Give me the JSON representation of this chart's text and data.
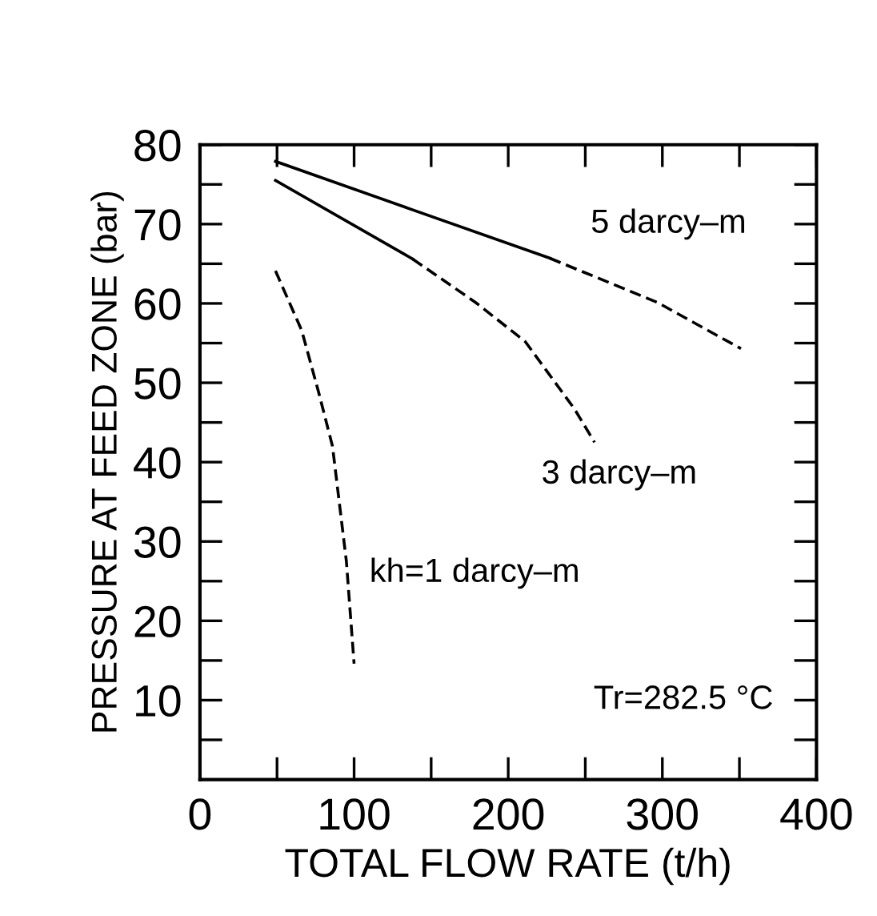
{
  "chart_data": {
    "type": "line",
    "xlabel": "TOTAL FLOW RATE (t/h)",
    "ylabel": "PRESSURE AT FEED ZONE (bar)",
    "series": [
      {
        "color": "#000000",
        "line_style": "solid",
        "x": [
          49,
          227
        ],
        "values": [
          77.9,
          65.7
        ]
      },
      {
        "color": "#000000",
        "line_style": "dashed",
        "x": [
          227,
          297,
          351
        ],
        "values": [
          65.7,
          60.1,
          54.3
        ]
      },
      {
        "color": "#000000",
        "line_style": "solid",
        "x": [
          49,
          138
        ],
        "values": [
          75.5,
          65.6
        ]
      },
      {
        "color": "#000000",
        "line_style": "dashed",
        "x": [
          138,
          179,
          211,
          243,
          256
        ],
        "values": [
          65.6,
          60.1,
          55.2,
          46.7,
          42.5
        ]
      },
      {
        "color": "#000000",
        "line_style": "dashed",
        "x": [
          49,
          66,
          77,
          86,
          95,
          100
        ],
        "values": [
          64.1,
          56.6,
          48.8,
          42,
          27.5,
          14.6
        ]
      }
    ],
    "annotations": [
      "5 darcy–m",
      "3 darcy–m",
      "kh=1 darcy–m",
      "Tr=282.5 °C"
    ],
    "xlim": [
      0,
      400
    ],
    "ylim": [
      0,
      80
    ],
    "xticks": [
      0,
      {
        "value": 50,
        "label": null
      },
      100,
      {
        "value": 150,
        "label": null
      },
      200,
      {
        "value": 250,
        "label": null
      },
      300,
      {
        "value": 350,
        "label": null
      },
      400
    ],
    "yticks": [
      {
        "value": 5,
        "label": null
      },
      10,
      {
        "value": 15,
        "label": null
      },
      20,
      {
        "value": 25,
        "label": null
      },
      30,
      {
        "value": 35,
        "label": null
      },
      40,
      {
        "value": 45,
        "label": null
      },
      50,
      {
        "value": 55,
        "label": null
      },
      60,
      {
        "value": 65,
        "label": null
      },
      70,
      {
        "value": 75,
        "label": null
      },
      80
    ],
    "grid": false,
    "legend": false
  }
}
